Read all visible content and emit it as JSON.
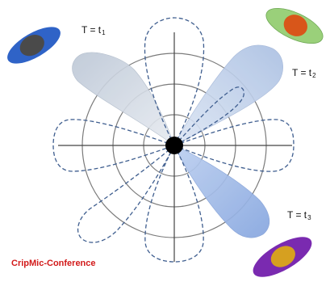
{
  "labels": {
    "t1": "T = t",
    "t1_sub": "1",
    "t2": "T = t",
    "t2_sub": "2",
    "t3": "T = t",
    "t3_sub": "3",
    "brand": "CripMic-Conference"
  },
  "colors": {
    "grid": "#7a7a7a",
    "axis": "#444444",
    "dashed_pattern": "#3f5e8f",
    "beam_t1": "#c5cedb",
    "beam_t2": "#b6c9e6",
    "beam_t3": "#93b0e2",
    "center_dot": "#000000",
    "user_t1_outer": "#2f63c7",
    "user_t1_inner": "#4a4a4a",
    "user_t2_outer": "#9ad07a",
    "user_t2_inner": "#d8561a",
    "user_t3_outer": "#7a2ab0",
    "user_t3_inner": "#d6a020",
    "brand_text": "#d21a1a"
  }
}
